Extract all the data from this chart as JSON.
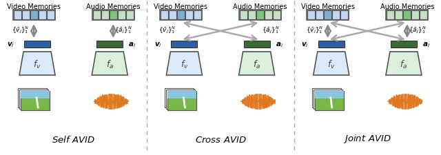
{
  "panels": [
    {
      "title": "Self AVID",
      "arrows": "self"
    },
    {
      "title": "Cross AVID",
      "arrows": "cross"
    },
    {
      "title": "Joint AVID",
      "arrows": "joint"
    }
  ],
  "video_mem_label": "Video Memories",
  "audio_mem_label": "Audio Memories",
  "video_mem_color_cells": [
    "#c5d8f0",
    "#c5d8f0",
    "#7bafd4",
    "#c5d8f0",
    "#c5d8f0"
  ],
  "audio_mem_color_cells": [
    "#c5e0c5",
    "#c5e0c5",
    "#7dc47d",
    "#c5e0c5",
    "#c5e0c5"
  ],
  "mem_border_color": "#555555",
  "video_bar_color": "#2e5fa3",
  "audio_bar_color": "#3a6b35",
  "trapezoid_video_color": "#daeaf8",
  "trapezoid_audio_color": "#daf0da",
  "trapezoid_border_color": "#555555",
  "label_v_mem": "{\\bar{v}_j}^N_1",
  "label_a_mem": "{\\bar{a}_j}^N_1",
  "label_vi": "v_i",
  "label_ai": "a_i",
  "label_fv": "f_v",
  "label_fa": "f_a",
  "divider_color": "#aaaaaa",
  "background_color": "#ffffff",
  "arrow_color": "#888888",
  "waveform_color": "#e07820",
  "title_fontsize": 11,
  "label_fontsize": 8
}
